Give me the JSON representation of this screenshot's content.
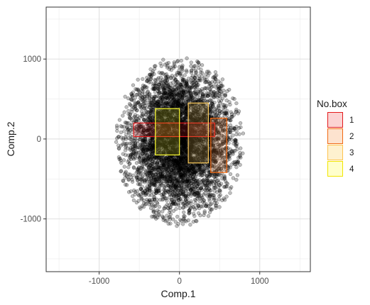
{
  "chart_data": {
    "type": "scatter",
    "xlabel": "Comp.1",
    "ylabel": "Comp.2",
    "xlim": [
      -1660,
      1630
    ],
    "ylim": [
      -1660,
      1650
    ],
    "x_ticks": [
      -1000,
      0,
      1000
    ],
    "y_ticks": [
      -1000,
      0,
      1000
    ],
    "x_tick_labels": [
      "-1000",
      "0",
      "1000"
    ],
    "y_tick_labels": [
      "-1000",
      "0",
      "1000"
    ],
    "grid": true,
    "point_cloud": {
      "description_shape": "ellipse",
      "center": [
        0,
        -30
      ],
      "x_half_range": 800,
      "y_range": [
        -1140,
        980
      ],
      "approx_points": 5000,
      "point_color": "#000000",
      "point_alpha": 0.25
    },
    "legend": {
      "title": "No.box",
      "position": "right",
      "entries": [
        "1",
        "2",
        "3",
        "4"
      ]
    },
    "boxes": [
      {
        "name": "1",
        "x": [
          -570,
          440
        ],
        "y": [
          30,
          200
        ],
        "stroke": "#e31a1c",
        "fill": "#e31a1c"
      },
      {
        "name": "2",
        "x": [
          390,
          590
        ],
        "y": [
          -420,
          260
        ],
        "stroke": "#f16913",
        "fill": "#fd8d3c"
      },
      {
        "name": "3",
        "x": [
          110,
          360
        ],
        "y": [
          -300,
          450
        ],
        "stroke": "#fecc5c",
        "fill": "#fecc5c"
      },
      {
        "name": "4",
        "x": [
          -300,
          0
        ],
        "y": [
          -200,
          380
        ],
        "stroke": "#ffff33",
        "fill": "#ffff33"
      }
    ],
    "legend_colors": [
      {
        "stroke": "#e31a1c",
        "fill": "#fbd3d3"
      },
      {
        "stroke": "#f16913",
        "fill": "#fde3cf"
      },
      {
        "stroke": "#fec44f",
        "fill": "#fef1cf"
      },
      {
        "stroke": "#f2e600",
        "fill": "#ffffcc"
      }
    ]
  }
}
